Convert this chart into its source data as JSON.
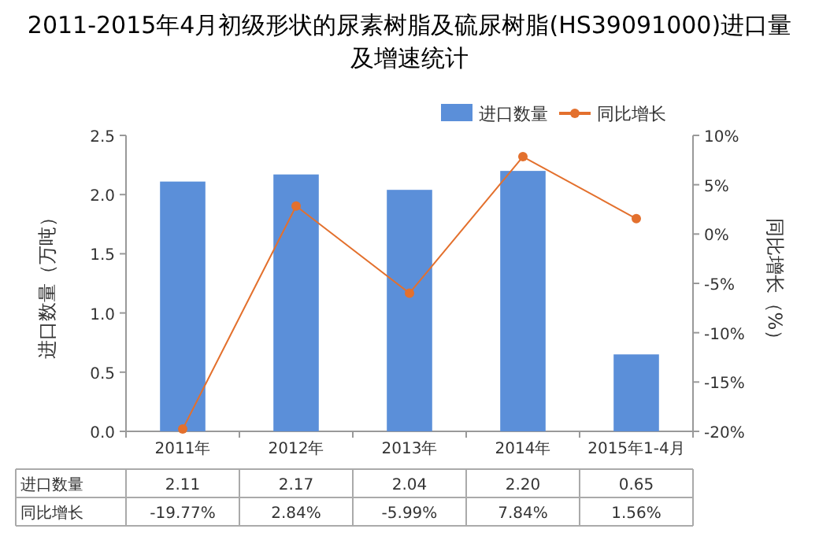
{
  "chart_data": {
    "type": "bar",
    "title": "2011-2015年4月初级形状的尿素树脂及硫尿树脂(HS39091000)进口量及增速统计",
    "ylabel": "进口数量（万吨）",
    "y2label": "同比增长（%）",
    "categories": [
      "2011年",
      "2012年",
      "2013年",
      "2014年",
      "2015年1-4月"
    ],
    "series": [
      {
        "name": "进口数量",
        "color": "#5b8fd9",
        "values": [
          2.11,
          2.17,
          2.04,
          2.2,
          0.65
        ],
        "value_labels": [
          "2.11",
          "2.17",
          "2.04",
          "2.20",
          "0.65"
        ]
      },
      {
        "name": "同比增长",
        "type": "line",
        "axis": "y2",
        "color": "#e3702d",
        "marker": "circle",
        "values": [
          -19.77,
          2.84,
          -5.99,
          7.84,
          1.56
        ],
        "value_labels": [
          "-19.77%",
          "2.84%",
          "-5.99%",
          "7.84%",
          "1.56%"
        ]
      }
    ],
    "ylim": [
      0,
      2.5
    ],
    "yticks": [
      {
        "value": 0,
        "label": "0.0"
      },
      {
        "value": 0.5,
        "label": "0.5"
      },
      {
        "value": 1,
        "label": "1.0"
      },
      {
        "value": 1.5,
        "label": "1.5"
      },
      {
        "value": 2,
        "label": "2.0"
      },
      {
        "value": 2.5,
        "label": "2.5"
      }
    ],
    "y2lim": [
      -20,
      10
    ],
    "y2ticks": [
      {
        "value": -20,
        "label": "-20%"
      },
      {
        "value": -15,
        "label": "-15%"
      },
      {
        "value": -10,
        "label": "-10%"
      },
      {
        "value": -5,
        "label": "-5%"
      },
      {
        "value": 0,
        "label": "0%"
      },
      {
        "value": 5,
        "label": "5%"
      },
      {
        "value": 10,
        "label": "10%"
      }
    ],
    "legend": "top right"
  }
}
